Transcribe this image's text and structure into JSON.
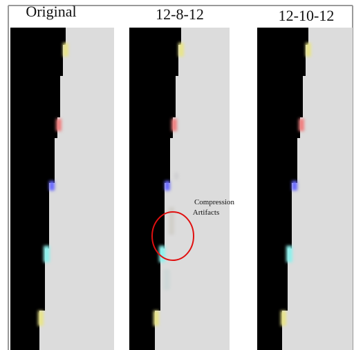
{
  "panels": [
    {
      "title": "Original"
    },
    {
      "title": "12-8-12"
    },
    {
      "title": "12-10-12"
    }
  ],
  "annotation": {
    "lines": [
      "Compression",
      "Artifacts"
    ]
  }
}
